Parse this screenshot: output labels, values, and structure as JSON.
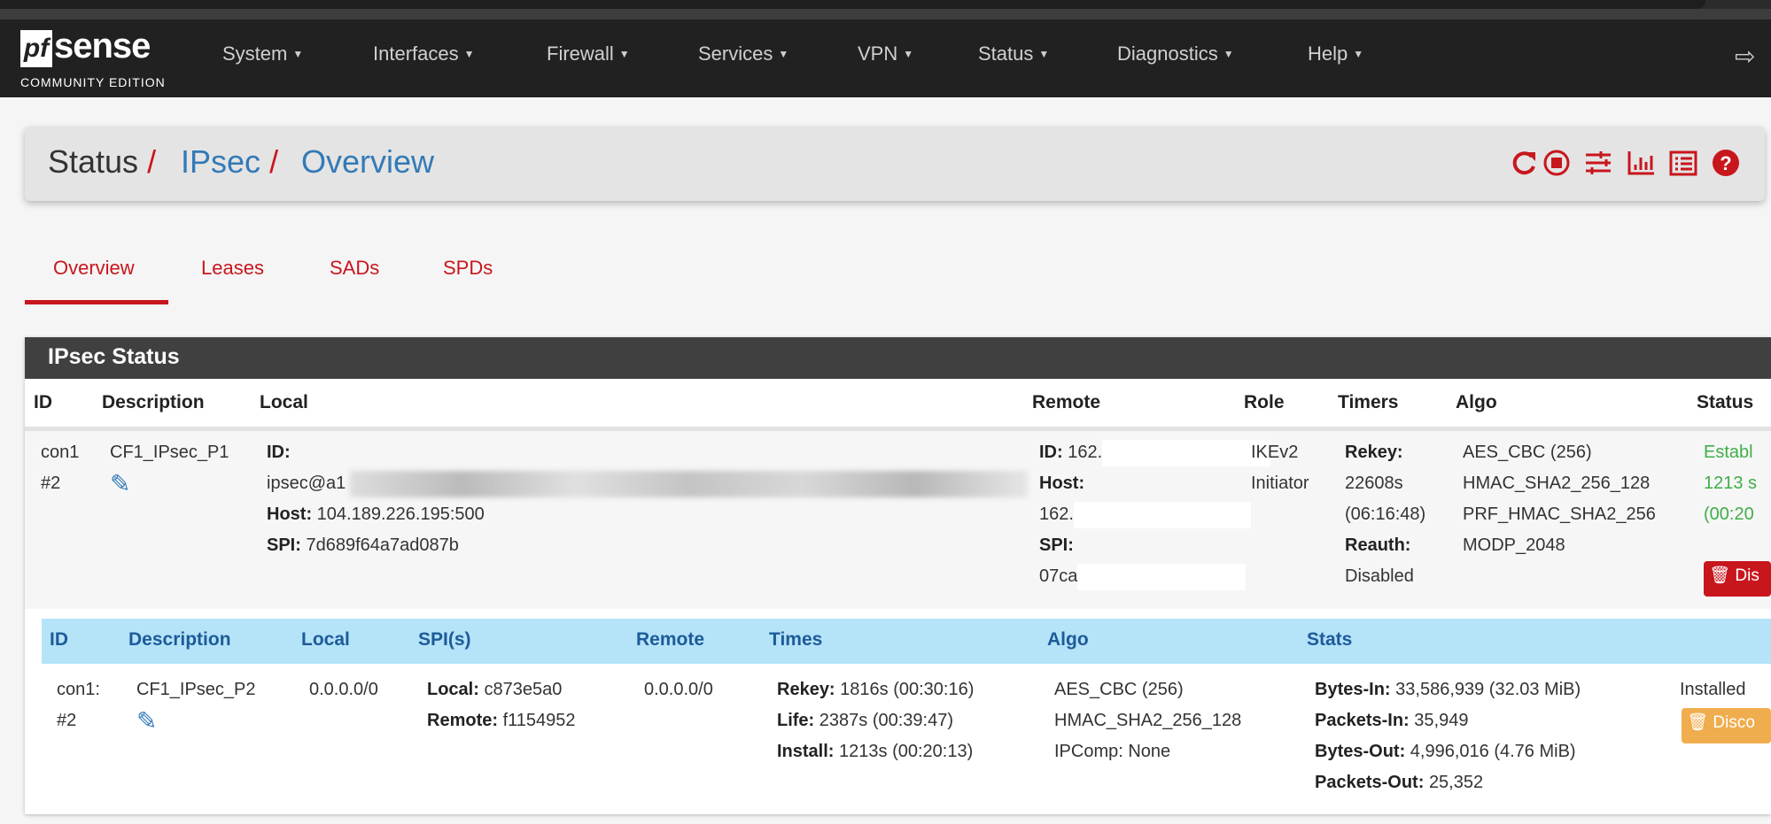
{
  "nav": {
    "logo": {
      "mark": "pf",
      "name": "sense",
      "edition": "COMMUNITY EDITION"
    },
    "menu": [
      "System",
      "Interfaces",
      "Firewall",
      "Services",
      "VPN",
      "Status",
      "Diagnostics",
      "Help"
    ],
    "logout_icon": "sign-out-icon"
  },
  "breadcrumb": {
    "items": [
      "Status",
      "IPsec",
      "Overview"
    ],
    "separator": "/"
  },
  "toolbar_icons": [
    "restart-icon",
    "stop-icon",
    "sliders-icon",
    "bar-chart-icon",
    "list-icon",
    "help-icon"
  ],
  "tabs": [
    {
      "label": "Overview",
      "active": true
    },
    {
      "label": "Leases",
      "active": false
    },
    {
      "label": "SADs",
      "active": false
    },
    {
      "label": "SPDs",
      "active": false
    }
  ],
  "panel": {
    "title": "IPsec Status",
    "columns": [
      "ID",
      "Description",
      "Local",
      "Remote",
      "Role",
      "Timers",
      "Algo",
      "Status"
    ],
    "p1": {
      "id": [
        "con1",
        "#2"
      ],
      "description": "CF1_IPsec_P1",
      "local": {
        "id_label": "ID:",
        "id_value": "ipsec@a1",
        "host_label": "Host:",
        "host_value": "104.189.226.195:500",
        "spi_label": "SPI:",
        "spi_value": "7d689f64a7ad087b"
      },
      "remote": {
        "id_label": "ID:",
        "id_value": "162.",
        "host_label": "Host:",
        "host_value": "162.",
        "spi_label": "SPI:",
        "spi_value": "07ca"
      },
      "role": [
        "IKEv2",
        "Initiator"
      ],
      "timers": {
        "rekey_label": "Rekey:",
        "rekey": "22608s",
        "rekey_hms": "(06:16:48)",
        "reauth_label": "Reauth:",
        "reauth": "Disabled"
      },
      "algo": [
        "AES_CBC (256)",
        "HMAC_SHA2_256_128",
        "PRF_HMAC_SHA2_256",
        "MODP_2048"
      ],
      "status": [
        "Establ",
        "1213 s",
        "(00:20"
      ],
      "disconnect_label": "Dis"
    },
    "child": {
      "columns": [
        "ID",
        "Description",
        "Local",
        "SPI(s)",
        "Remote",
        "Times",
        "Algo",
        "Stats"
      ],
      "row": {
        "id": [
          "con1:",
          "#2"
        ],
        "description": "CF1_IPsec_P2",
        "local": "0.0.0.0/0",
        "spis": [
          {
            "label": "Local:",
            "value": "c873e5a0"
          },
          {
            "label": "Remote:",
            "value": "f1154952"
          }
        ],
        "remote": "0.0.0.0/0",
        "times": [
          {
            "label": "Rekey:",
            "value": "1816s (00:30:16)"
          },
          {
            "label": "Life:",
            "value": "2387s (00:39:47)"
          },
          {
            "label": "Install:",
            "value": "1213s (00:20:13)"
          }
        ],
        "algo": [
          "AES_CBC (256)",
          "HMAC_SHA2_256_128",
          "IPComp: None"
        ],
        "stats": [
          {
            "label": "Bytes-In:",
            "value": "33,586,939 (32.03 MiB)"
          },
          {
            "label": "Packets-In:",
            "value": "35,949"
          },
          {
            "label": "Bytes-Out:",
            "value": "4,996,016 (4.76 MiB)"
          },
          {
            "label": "Packets-Out:",
            "value": "25,352"
          }
        ],
        "status": "Installed",
        "disconnect_label": "Disco"
      }
    }
  },
  "colors": {
    "navbar": "#212121",
    "accent_red": "#c8161d",
    "link_blue": "#337ab7",
    "child_header": "#b5e3f8",
    "established_green": "#3fae49",
    "disconnect_p2": "#f0ad4e"
  }
}
